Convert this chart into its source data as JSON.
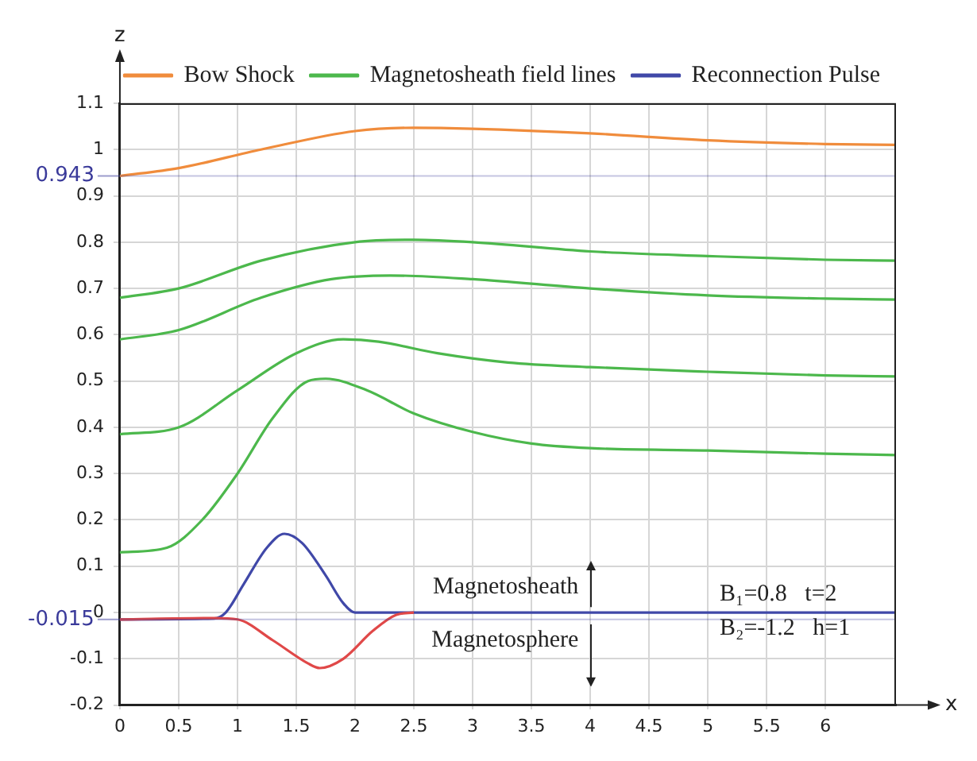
{
  "chart_data": {
    "type": "line",
    "xlabel": "x",
    "ylabel": "z",
    "xlim": [
      0,
      6.6
    ],
    "xticks": [
      0,
      0.5,
      1,
      1.5,
      2,
      2.5,
      3,
      3.5,
      4,
      4.5,
      5,
      5.5,
      6
    ],
    "ylim": [
      -0.2,
      1.1
    ],
    "yticks": [
      -0.2,
      -0.1,
      0,
      0.1,
      0.2,
      0.3,
      0.4,
      0.5,
      0.6,
      0.7,
      0.8,
      0.9,
      1,
      1.1
    ],
    "grid": true,
    "legend": "top right",
    "marker": "none",
    "line_style": "solid",
    "series": [
      {
        "name": "Bow Shock",
        "color": "#f08c3c",
        "x": [
          0,
          0.5,
          1.2,
          2,
          2.5,
          3,
          4,
          5,
          6,
          6.6
        ],
        "values": [
          0.943,
          0.96,
          1.0,
          1.04,
          1.047,
          1.045,
          1.035,
          1.02,
          1.012,
          1.01
        ]
      },
      {
        "name": "Magnetosheath field lines",
        "color": "#4cb84c",
        "x": [
          0,
          0.5,
          1.2,
          2,
          2.5,
          3,
          4,
          5,
          6,
          6.6
        ],
        "values": [
          0.68,
          0.7,
          0.76,
          0.8,
          0.805,
          0.8,
          0.78,
          0.77,
          0.762,
          0.76
        ]
      },
      {
        "color": "#4cb84c",
        "x": [
          0,
          0.5,
          1.2,
          1.8,
          2.3,
          3,
          4,
          5,
          6,
          6.6
        ],
        "values": [
          0.59,
          0.61,
          0.68,
          0.72,
          0.728,
          0.72,
          0.7,
          0.685,
          0.678,
          0.676
        ]
      },
      {
        "color": "#4cb84c",
        "x": [
          0,
          0.5,
          1,
          1.5,
          1.9,
          2.2,
          2.7,
          3.3,
          4,
          5,
          6,
          6.6
        ],
        "values": [
          0.385,
          0.4,
          0.48,
          0.56,
          0.59,
          0.585,
          0.56,
          0.54,
          0.53,
          0.52,
          0.512,
          0.51
        ]
      },
      {
        "color": "#4cb84c",
        "x": [
          0,
          0.4,
          0.7,
          1,
          1.3,
          1.6,
          1.75,
          2.1,
          2.5,
          3,
          3.5,
          4,
          5,
          6,
          6.6
        ],
        "values": [
          0.13,
          0.14,
          0.2,
          0.3,
          0.42,
          0.5,
          0.505,
          0.48,
          0.43,
          0.39,
          0.365,
          0.355,
          0.35,
          0.343,
          0.34
        ]
      },
      {
        "color": "#e04848",
        "x": [
          0,
          0.8,
          1,
          1.3,
          1.6,
          1.7,
          1.9,
          2.15,
          2.35,
          2.5
        ],
        "values": [
          -0.015,
          -0.012,
          -0.015,
          -0.06,
          -0.11,
          -0.12,
          -0.1,
          -0.04,
          -0.005,
          0
        ]
      },
      {
        "name": "Reconnection Pulse",
        "color": "#4048a8",
        "x": [
          0,
          0.8,
          0.9,
          1.05,
          1.25,
          1.4,
          1.55,
          1.75,
          1.9,
          2,
          6.6
        ],
        "values": [
          -0.015,
          -0.013,
          0,
          0.06,
          0.14,
          0.17,
          0.15,
          0.08,
          0.02,
          0,
          0
        ]
      }
    ],
    "ref_lines": [
      {
        "axis": "y",
        "value": 0.943,
        "label": "0.943",
        "color": "#3a3a9a"
      },
      {
        "axis": "y",
        "value": -0.015,
        "label": "-0.015",
        "color": "#3a3a9a"
      }
    ],
    "annotations": [
      "Magnetosheath",
      "Magnetosphere",
      "B₁=0.8   t=2",
      "B₂=-1.2   h=1"
    ]
  }
}
